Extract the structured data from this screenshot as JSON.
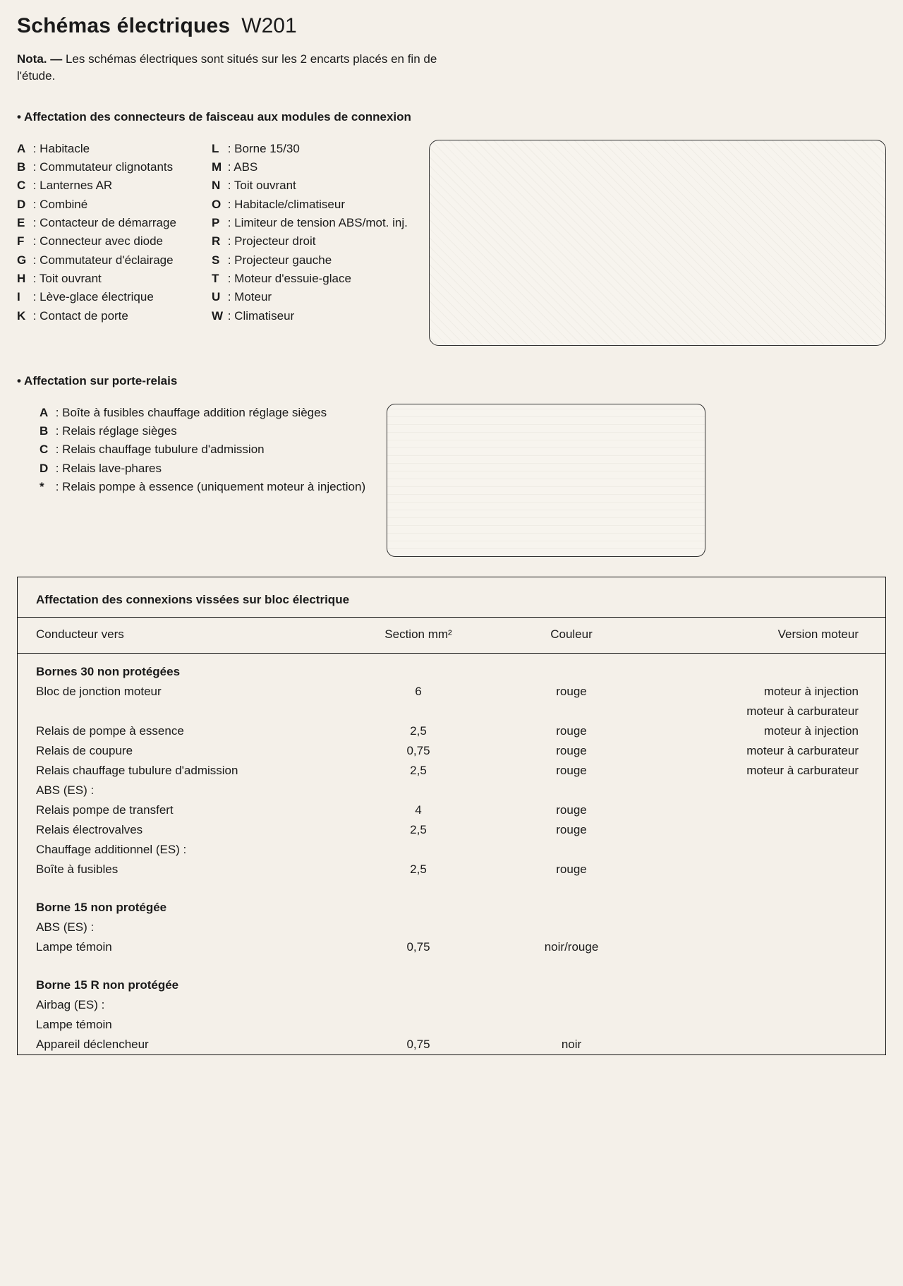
{
  "title": "Schémas électriques",
  "subtitle": "W201",
  "nota_label": "Nota. —",
  "nota_text": "Les schémas électriques sont situés sur les 2 encarts placés en fin de l'étude.",
  "section1_title": "• Affectation des connecteurs de faisceau aux modules de connexion",
  "legend_col1": [
    {
      "k": "A",
      "v": "Habitacle"
    },
    {
      "k": "B",
      "v": "Commutateur clignotants"
    },
    {
      "k": "C",
      "v": "Lanternes AR"
    },
    {
      "k": "D",
      "v": "Combiné"
    },
    {
      "k": "E",
      "v": "Contacteur de démarrage"
    },
    {
      "k": "F",
      "v": "Connecteur avec diode"
    },
    {
      "k": "G",
      "v": "Commutateur d'éclairage"
    },
    {
      "k": "H",
      "v": "Toit ouvrant"
    },
    {
      "k": "I",
      "v": "Lève-glace électrique"
    },
    {
      "k": "K",
      "v": "Contact de porte"
    }
  ],
  "legend_col2": [
    {
      "k": "L",
      "v": "Borne 15/30"
    },
    {
      "k": "M",
      "v": "ABS"
    },
    {
      "k": "N",
      "v": "Toit ouvrant"
    },
    {
      "k": "O",
      "v": "Habitacle/climatiseur"
    },
    {
      "k": "P",
      "v": "Limiteur de tension ABS/mot. inj."
    },
    {
      "k": "R",
      "v": "Projecteur droit"
    },
    {
      "k": "S",
      "v": "Projecteur gauche"
    },
    {
      "k": "T",
      "v": "Moteur d'essuie-glace"
    },
    {
      "k": "U",
      "v": "Moteur"
    },
    {
      "k": "W",
      "v": "Climatiseur"
    }
  ],
  "section2_title": "• Affectation sur porte-relais",
  "relay_list": [
    {
      "k": "A",
      "v": "Boîte à fusibles chauffage addition réglage sièges"
    },
    {
      "k": "B",
      "v": "Relais réglage sièges"
    },
    {
      "k": "C",
      "v": "Relais chauffage tubulure d'admission"
    },
    {
      "k": "D",
      "v": "Relais lave-phares"
    },
    {
      "k": "*",
      "v": "Relais pompe à essence (uniquement moteur à injection)"
    }
  ],
  "table_title": "Affectation des connexions vissées sur bloc électrique",
  "headers": {
    "c1": "Conducteur vers",
    "c2": "Section mm²",
    "c3": "Couleur",
    "c4": "Version moteur"
  },
  "rows": [
    {
      "type": "group",
      "c1": "Bornes 30 non protégées"
    },
    {
      "c1": "Bloc de jonction moteur",
      "c2": "6",
      "c3": "rouge",
      "c4": "moteur à injection"
    },
    {
      "c1": "",
      "c2": "",
      "c3": "",
      "c4": "moteur à carburateur"
    },
    {
      "c1": "Relais de pompe à essence",
      "c2": "2,5",
      "c3": "rouge",
      "c4": "moteur à injection"
    },
    {
      "c1": "Relais de coupure",
      "c2": "0,75",
      "c3": "rouge",
      "c4": "moteur à carburateur"
    },
    {
      "c1": "Relais chauffage tubulure d'admission",
      "c2": "2,5",
      "c3": "rouge",
      "c4": "moteur à carburateur"
    },
    {
      "c1": "ABS (ES) :",
      "c2": "",
      "c3": "",
      "c4": ""
    },
    {
      "c1": "Relais pompe de transfert",
      "c2": "4",
      "c3": "rouge",
      "c4": ""
    },
    {
      "c1": "Relais électrovalves",
      "c2": "2,5",
      "c3": "rouge",
      "c4": ""
    },
    {
      "c1": "Chauffage additionnel (ES) :",
      "c2": "",
      "c3": "",
      "c4": ""
    },
    {
      "c1": "Boîte à fusibles",
      "c2": "2,5",
      "c3": "rouge",
      "c4": ""
    },
    {
      "type": "spacer"
    },
    {
      "type": "group",
      "c1": "Borne 15 non protégée"
    },
    {
      "c1": "ABS (ES) :",
      "c2": "",
      "c3": "",
      "c4": ""
    },
    {
      "c1": "Lampe témoin",
      "c2": "0,75",
      "c3": "noir/rouge",
      "c4": ""
    },
    {
      "type": "spacer"
    },
    {
      "type": "group",
      "c1": "Borne 15 R non protégée"
    },
    {
      "c1": "Airbag (ES) :",
      "c2": "",
      "c3": "",
      "c4": ""
    },
    {
      "c1": "Lampe témoin",
      "c2": "",
      "c3": "",
      "c4": ""
    },
    {
      "c1": "Appareil déclencheur",
      "c2": "0,75",
      "c3": "noir",
      "c4": ""
    }
  ]
}
